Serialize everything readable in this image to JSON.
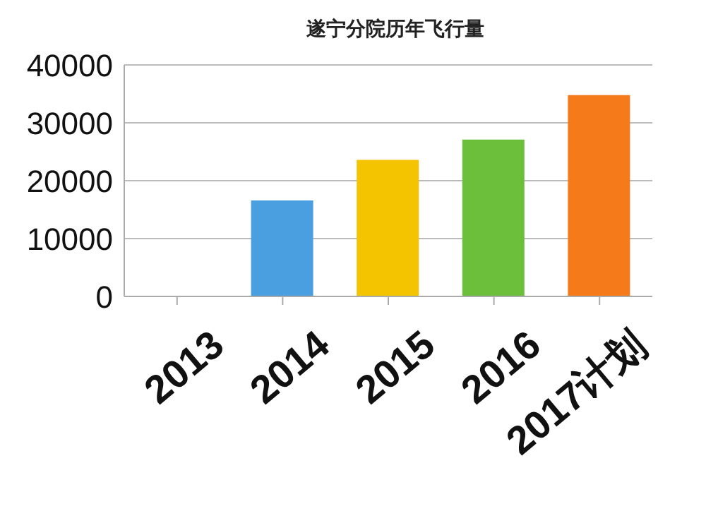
{
  "chart_data": {
    "type": "bar",
    "title": "遂宁分院历年飞行量",
    "categories": [
      "2013",
      "2014",
      "2015",
      "2016",
      "2017计划"
    ],
    "values": [
      null,
      16600,
      23600,
      27100,
      34800
    ],
    "colors": [
      null,
      "#4a9fe0",
      "#f5c400",
      "#6cbf3a",
      "#f57a1a"
    ],
    "ylim": [
      0,
      40000
    ],
    "yticks": [
      0,
      10000,
      20000,
      30000,
      40000
    ],
    "grid": "y"
  }
}
